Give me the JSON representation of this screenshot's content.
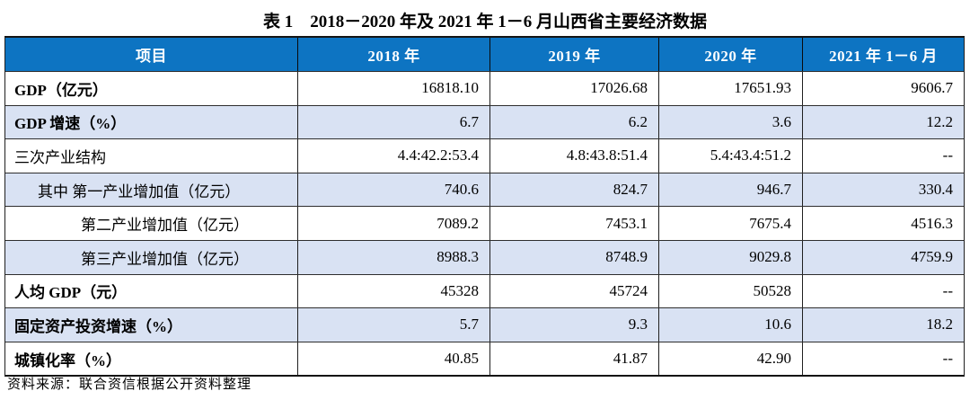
{
  "page": {
    "title": "表 1　2018－2020 年及 2021 年 1－6 月山西省主要经济数据",
    "source_note": "资料来源：联合资信根据公开资料整理"
  },
  "colors": {
    "header_bg": "#0d74c2",
    "header_text": "#ffffff",
    "alt_row_bg": "#d9e2f3",
    "grid_line": "#1f1f1f"
  },
  "table": {
    "columns": [
      "项目",
      "2018 年",
      "2019 年",
      "2020 年",
      "2021 年 1－6 月"
    ],
    "rows": [
      {
        "label": "GDP（亿元）",
        "values": [
          "16818.10",
          "17026.68",
          "17651.93",
          "9606.7"
        ]
      },
      {
        "label": "GDP 增速（%）",
        "values": [
          "6.7",
          "6.2",
          "3.6",
          "12.2"
        ]
      },
      {
        "label": "三次产业结构",
        "values": [
          "4.4:42.2:53.4",
          "4.8:43.8:51.4",
          "5.4:43.4:51.2",
          "--"
        ]
      },
      {
        "label": "其中 第一产业增加值（亿元）",
        "values": [
          "740.6",
          "824.7",
          "946.7",
          "330.4"
        ]
      },
      {
        "label": "第二产业增加值（亿元）",
        "values": [
          "7089.2",
          "7453.1",
          "7675.4",
          "4516.3"
        ]
      },
      {
        "label": "第三产业增加值（亿元）",
        "values": [
          "8988.3",
          "8748.9",
          "9029.8",
          "4759.9"
        ]
      },
      {
        "label": "人均 GDP（元）",
        "values": [
          "45328",
          "45724",
          "50528",
          "--"
        ]
      },
      {
        "label": "固定资产投资增速（%）",
        "values": [
          "5.7",
          "9.3",
          "10.6",
          "18.2"
        ]
      },
      {
        "label": "城镇化率（%）",
        "values": [
          "40.85",
          "41.87",
          "42.90",
          "--"
        ]
      }
    ]
  }
}
